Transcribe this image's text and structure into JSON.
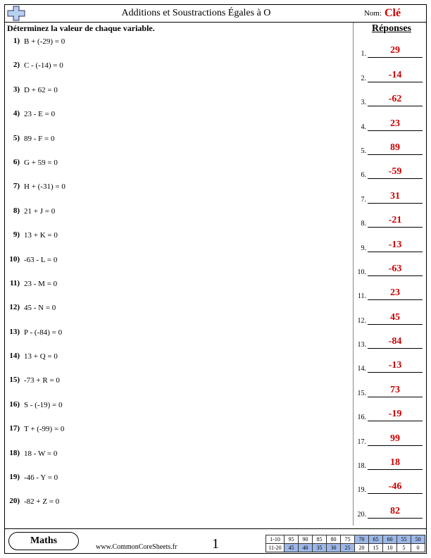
{
  "header": {
    "title": "Additions et Soustractions Égales à O",
    "nom_label": "Nom:",
    "nom_value": "Clé"
  },
  "instruction": "Déterminez la valeur de chaque variable.",
  "answers_header": "Réponses",
  "problems": [
    {
      "n": "1)",
      "eq": "B + (-29) = 0",
      "ans": "29"
    },
    {
      "n": "2)",
      "eq": "C - (-14) = 0",
      "ans": "-14"
    },
    {
      "n": "3)",
      "eq": "D + 62 = 0",
      "ans": "-62"
    },
    {
      "n": "4)",
      "eq": "23 - E = 0",
      "ans": "23"
    },
    {
      "n": "5)",
      "eq": "89 - F = 0",
      "ans": "89"
    },
    {
      "n": "6)",
      "eq": "G + 59 = 0",
      "ans": "-59"
    },
    {
      "n": "7)",
      "eq": "H + (-31) = 0",
      "ans": "31"
    },
    {
      "n": "8)",
      "eq": "21 + J = 0",
      "ans": "-21"
    },
    {
      "n": "9)",
      "eq": "13 + K = 0",
      "ans": "-13"
    },
    {
      "n": "10)",
      "eq": "-63 - L = 0",
      "ans": "-63"
    },
    {
      "n": "11)",
      "eq": "23 - M = 0",
      "ans": "23"
    },
    {
      "n": "12)",
      "eq": "45 - N = 0",
      "ans": "45"
    },
    {
      "n": "13)",
      "eq": "P - (-84) = 0",
      "ans": "-84"
    },
    {
      "n": "14)",
      "eq": "13 + Q = 0",
      "ans": "-13"
    },
    {
      "n": "15)",
      "eq": "-73 + R = 0",
      "ans": "73"
    },
    {
      "n": "16)",
      "eq": "S - (-19) = 0",
      "ans": "-19"
    },
    {
      "n": "17)",
      "eq": "T + (-99) = 0",
      "ans": "99"
    },
    {
      "n": "18)",
      "eq": "18 - W = 0",
      "ans": "18"
    },
    {
      "n": "19)",
      "eq": "-46 - Y = 0",
      "ans": "-46"
    },
    {
      "n": "20)",
      "eq": "-82 + Z = 0",
      "ans": "82"
    }
  ],
  "footer": {
    "subject": "Maths",
    "site": "www.CommonCoreSheets.fr",
    "page": "1",
    "score_rows": [
      {
        "label": "1-10",
        "cells": [
          "95",
          "90",
          "85",
          "80",
          "75",
          "70",
          "65",
          "60",
          "55",
          "50"
        ],
        "hl_start": 5
      },
      {
        "label": "11-20",
        "cells": [
          "45",
          "40",
          "35",
          "30",
          "25",
          "20",
          "15",
          "10",
          "5",
          "0"
        ],
        "hl_start": 0,
        "hl_end": 4
      }
    ]
  },
  "colors": {
    "answer_color": "#cc0000",
    "score_highlight": "#9db8e8"
  }
}
